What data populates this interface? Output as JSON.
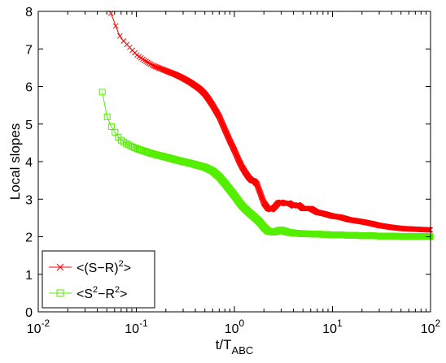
{
  "chart_data": {
    "type": "line",
    "xscale": "log",
    "xlim": [
      0.01,
      100
    ],
    "ylim": [
      0,
      8
    ],
    "xlabel": {
      "base": "t/T",
      "sub": "ABC"
    },
    "ylabel": "Local slopes",
    "xticks": [
      {
        "value": 0.01,
        "base": "10",
        "exp": "-2"
      },
      {
        "value": 0.1,
        "base": "10",
        "exp": "-1"
      },
      {
        "value": 1,
        "base": "10",
        "exp": "0"
      },
      {
        "value": 10,
        "base": "10",
        "exp": "1"
      },
      {
        "value": 100,
        "base": "10",
        "exp": "2"
      }
    ],
    "yticks": [
      "0",
      "1",
      "2",
      "3",
      "4",
      "5",
      "6",
      "7",
      "8"
    ],
    "grid": false,
    "legend_position": "bottom-left",
    "series": [
      {
        "legend": {
          "p1": "<(S−R)",
          "sup": "2",
          "p2": ">"
        },
        "color": "#ff0000",
        "marker": "x",
        "points": [
          [
            0.055,
            7.95
          ],
          [
            0.06,
            7.7
          ],
          [
            0.065,
            7.45
          ],
          [
            0.07,
            7.28
          ],
          [
            0.08,
            7.12
          ],
          [
            0.09,
            6.98
          ],
          [
            0.1,
            6.85
          ],
          [
            0.12,
            6.7
          ],
          [
            0.15,
            6.55
          ],
          [
            0.2,
            6.42
          ],
          [
            0.25,
            6.32
          ],
          [
            0.3,
            6.22
          ],
          [
            0.35,
            6.12
          ],
          [
            0.4,
            6.02
          ],
          [
            0.45,
            5.92
          ],
          [
            0.5,
            5.8
          ],
          [
            0.55,
            5.65
          ],
          [
            0.6,
            5.5
          ],
          [
            0.7,
            5.2
          ],
          [
            0.8,
            4.85
          ],
          [
            0.9,
            4.55
          ],
          [
            1.0,
            4.3
          ],
          [
            1.1,
            4.05
          ],
          [
            1.2,
            3.85
          ],
          [
            1.3,
            3.7
          ],
          [
            1.4,
            3.58
          ],
          [
            1.5,
            3.5
          ],
          [
            1.6,
            3.48
          ],
          [
            1.7,
            3.4
          ],
          [
            1.8,
            3.22
          ],
          [
            1.9,
            3.05
          ],
          [
            2.0,
            2.9
          ],
          [
            2.2,
            2.75
          ],
          [
            2.4,
            2.72
          ],
          [
            2.6,
            2.8
          ],
          [
            2.8,
            2.9
          ],
          [
            3.0,
            2.92
          ],
          [
            3.3,
            2.88
          ],
          [
            3.6,
            2.9
          ],
          [
            4.0,
            2.82
          ],
          [
            4.5,
            2.85
          ],
          [
            5,
            2.75
          ],
          [
            6,
            2.75
          ],
          [
            7,
            2.65
          ],
          [
            8,
            2.62
          ],
          [
            10,
            2.55
          ],
          [
            12,
            2.52
          ],
          [
            15,
            2.45
          ],
          [
            20,
            2.4
          ],
          [
            25,
            2.35
          ],
          [
            30,
            2.3
          ],
          [
            40,
            2.25
          ],
          [
            50,
            2.22
          ],
          [
            70,
            2.2
          ],
          [
            100,
            2.18
          ]
        ]
      },
      {
        "legend": {
          "p1": "<S",
          "sup": "2",
          "p2": "−R",
          "sup2": "2",
          "p3": ">"
        },
        "color": "#55ee00",
        "marker": "square",
        "points": [
          [
            0.045,
            5.85
          ],
          [
            0.05,
            5.22
          ],
          [
            0.055,
            4.95
          ],
          [
            0.06,
            4.8
          ],
          [
            0.065,
            4.66
          ],
          [
            0.07,
            4.57
          ],
          [
            0.075,
            4.52
          ],
          [
            0.08,
            4.47
          ],
          [
            0.09,
            4.4
          ],
          [
            0.1,
            4.35
          ],
          [
            0.12,
            4.28
          ],
          [
            0.15,
            4.2
          ],
          [
            0.2,
            4.12
          ],
          [
            0.25,
            4.05
          ],
          [
            0.3,
            4.0
          ],
          [
            0.35,
            3.96
          ],
          [
            0.4,
            3.92
          ],
          [
            0.5,
            3.85
          ],
          [
            0.6,
            3.75
          ],
          [
            0.7,
            3.6
          ],
          [
            0.8,
            3.42
          ],
          [
            0.9,
            3.25
          ],
          [
            1.0,
            3.1
          ],
          [
            1.1,
            2.95
          ],
          [
            1.2,
            2.82
          ],
          [
            1.4,
            2.65
          ],
          [
            1.6,
            2.52
          ],
          [
            1.8,
            2.4
          ],
          [
            2.0,
            2.25
          ],
          [
            2.2,
            2.15
          ],
          [
            2.5,
            2.12
          ],
          [
            3.0,
            2.18
          ],
          [
            3.5,
            2.12
          ],
          [
            4,
            2.1
          ],
          [
            5,
            2.08
          ],
          [
            7,
            2.07
          ],
          [
            10,
            2.05
          ],
          [
            15,
            2.04
          ],
          [
            20,
            2.03
          ],
          [
            30,
            2.02
          ],
          [
            50,
            2.01
          ],
          [
            100,
            2.0
          ]
        ]
      }
    ]
  }
}
